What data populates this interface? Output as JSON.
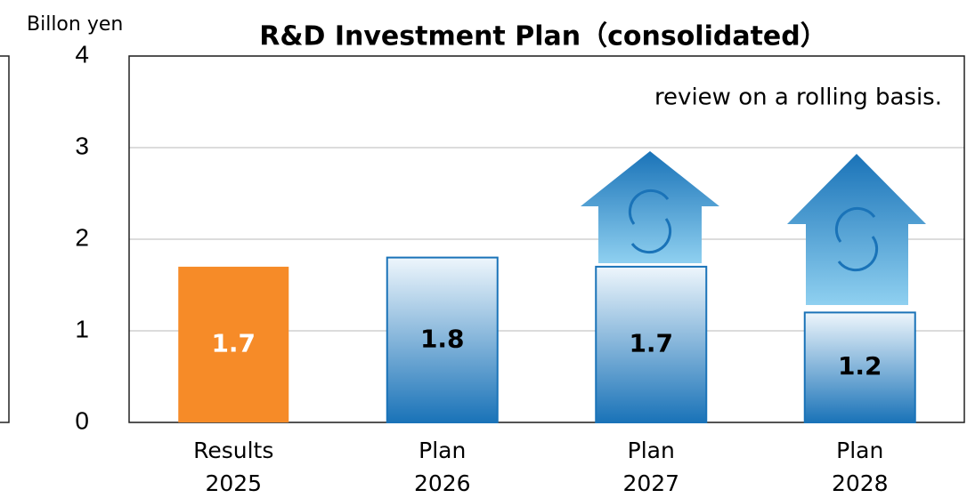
{
  "chart_data": {
    "type": "bar",
    "title": "R&D Investment Plan（consolidated）",
    "y_label": "Billon yen",
    "annotation": "review on a rolling basis.",
    "categories": [
      "Results 2025",
      "Plan 2026",
      "Plan 2027",
      "Plan 2028"
    ],
    "values": [
      1.7,
      1.8,
      1.7,
      1.2
    ],
    "colors": [
      "#f68b28",
      "#1a73b8",
      "#1a73b8",
      "#1a73b8"
    ],
    "ylim": [
      0,
      4
    ],
    "yticks": [
      0,
      1,
      2,
      3,
      4
    ],
    "grid": true
  }
}
